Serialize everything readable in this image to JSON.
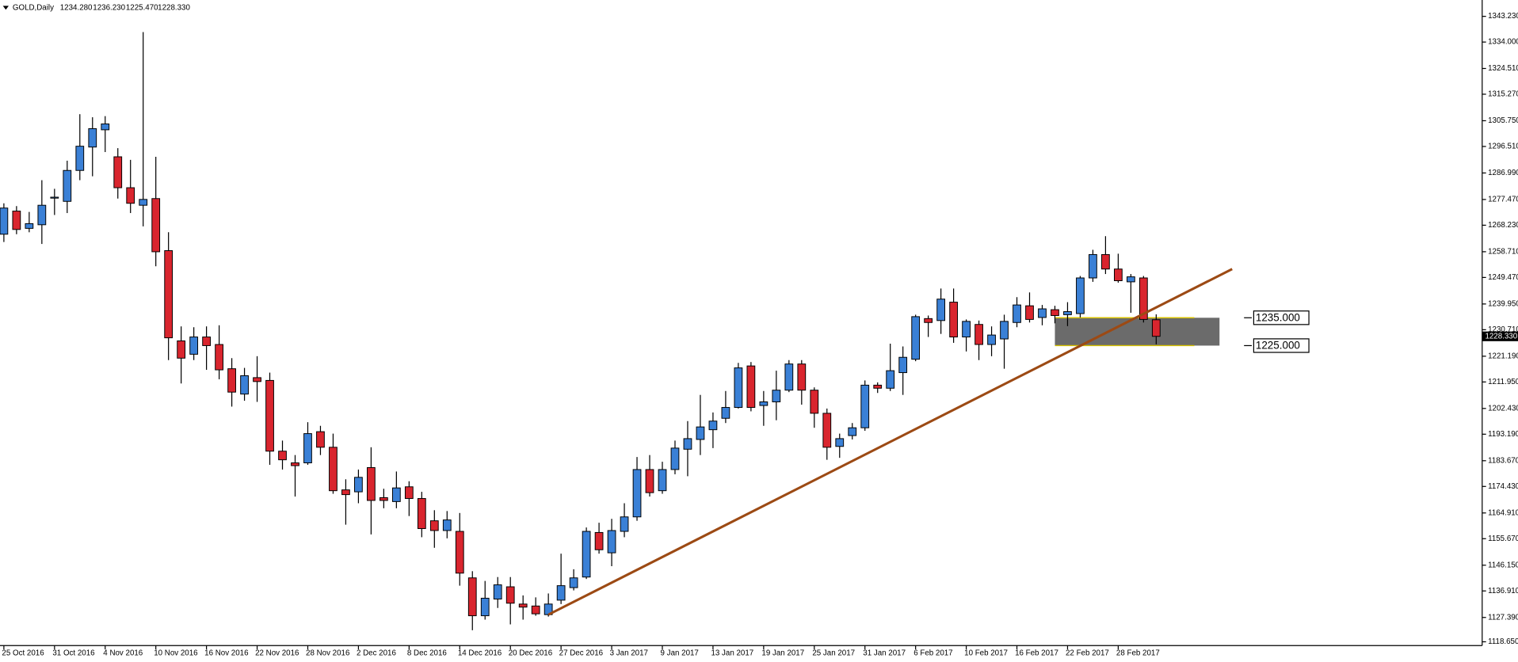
{
  "chart_data": {
    "type": "candlestick",
    "header": {
      "symbol": "GOLD,Daily",
      "ohlc": [
        "1234.280",
        "1236.230",
        "1225.470",
        "1228.330"
      ]
    },
    "categories": [
      "25 Oct 2016",
      null,
      null,
      null,
      "31 Oct 2016",
      null,
      null,
      null,
      "4 Nov 2016",
      null,
      null,
      null,
      "10 Nov 2016",
      null,
      null,
      null,
      "16 Nov 2016",
      null,
      null,
      null,
      "22 Nov 2016",
      null,
      null,
      null,
      "28 Nov 2016",
      null,
      null,
      null,
      "2 Dec 2016",
      null,
      null,
      null,
      "8 Dec 2016",
      null,
      null,
      null,
      "14 Dec 2016",
      null,
      null,
      null,
      "20 Dec 2016",
      null,
      null,
      null,
      "27 Dec 2016",
      null,
      null,
      null,
      "3 Jan 2017",
      null,
      null,
      null,
      "9 Jan 2017",
      null,
      null,
      null,
      "13 Jan 2017",
      null,
      null,
      null,
      "19 Jan 2017",
      null,
      null,
      null,
      "25 Jan 2017",
      null,
      null,
      null,
      "31 Jan 2017",
      null,
      null,
      null,
      "6 Feb 2017",
      null,
      null,
      null,
      "10 Feb 2017",
      null,
      null,
      null,
      "16 Feb 2017",
      null,
      null,
      null,
      "22 Feb 2017",
      null,
      null,
      null,
      "28 Feb 2017",
      null,
      null,
      null
    ],
    "open": [
      1265.0,
      1273.3,
      1267.1,
      1268.4,
      1278.2,
      1276.8,
      1287.9,
      1296.3,
      1302.5,
      1292.8,
      1281.7,
      1275.4,
      1277.8,
      1259.1,
      1226.7,
      1221.9,
      1228.1,
      1225.4,
      1216.7,
      1207.6,
      1213.5,
      1212.5,
      1187.1,
      1182.9,
      1182.9,
      1194.1,
      1188.5,
      1173.2,
      1172.5,
      1181.2,
      1170.4,
      1169.0,
      1174.3,
      1170.1,
      1162.1,
      1158.6,
      1158.3,
      1141.6,
      1128.0,
      1134.0,
      1138.4,
      1132.2,
      1131.5,
      1128.4,
      1133.6,
      1138.1,
      1141.9,
      1157.9,
      1150.6,
      1158.3,
      1163.5,
      1180.5,
      1172.9,
      1180.5,
      1187.8,
      1191.3,
      1194.8,
      1198.9,
      1202.8,
      1217.7,
      1203.5,
      1204.8,
      1209.0,
      1218.4,
      1209.0,
      1200.7,
      1188.8,
      1192.7,
      1195.5,
      1210.8,
      1209.7,
      1215.3,
      1220.1,
      1234.7,
      1234.0,
      1240.6,
      1228.1,
      1232.6,
      1225.4,
      1227.4,
      1233.3,
      1239.3,
      1235.1,
      1237.9,
      1236.1,
      1236.5,
      1249.3,
      1257.7,
      1252.5,
      1247.9,
      1249.3,
      1234.28
    ],
    "high": [
      1276.1,
      1275.1,
      1273.0,
      1284.4,
      1281.3,
      1291.4,
      1308.1,
      1307.0,
      1307.4,
      1295.9,
      1291.7,
      1337.6,
      1292.8,
      1265.7,
      1231.9,
      1231.6,
      1231.9,
      1232.3,
      1220.5,
      1217.0,
      1221.2,
      1215.3,
      1190.9,
      1185.7,
      1197.5,
      1196.2,
      1193.4,
      1177.0,
      1180.5,
      1188.5,
      1173.6,
      1179.8,
      1176.3,
      1172.5,
      1165.9,
      1165.6,
      1164.9,
      1144.0,
      1140.5,
      1141.9,
      1141.9,
      1135.3,
      1134.6,
      1136.0,
      1150.3,
      1144.7,
      1159.7,
      1161.4,
      1162.8,
      1168.4,
      1185.0,
      1185.7,
      1183.3,
      1190.9,
      1197.9,
      1207.3,
      1201.0,
      1208.7,
      1218.8,
      1219.1,
      1208.7,
      1216.0,
      1219.8,
      1219.8,
      1210.0,
      1202.4,
      1193.4,
      1197.2,
      1212.5,
      1211.8,
      1225.7,
      1224.7,
      1236.1,
      1235.8,
      1245.5,
      1245.5,
      1234.4,
      1234.0,
      1231.9,
      1236.1,
      1242.4,
      1244.1,
      1239.6,
      1239.3,
      1240.6,
      1250.0,
      1259.4,
      1264.3,
      1258.0,
      1250.7,
      1250.0,
      1236.23
    ],
    "low": [
      1262.2,
      1265.0,
      1265.7,
      1261.5,
      1271.9,
      1272.6,
      1284.4,
      1285.8,
      1294.5,
      1277.8,
      1272.6,
      1267.8,
      1253.5,
      1219.8,
      1211.4,
      1219.8,
      1216.3,
      1212.9,
      1203.1,
      1205.2,
      1204.8,
      1182.2,
      1180.5,
      1170.8,
      1182.2,
      1185.7,
      1171.8,
      1160.7,
      1168.4,
      1157.2,
      1166.6,
      1166.6,
      1163.8,
      1156.2,
      1152.4,
      1155.8,
      1138.8,
      1122.8,
      1126.6,
      1130.8,
      1124.9,
      1126.6,
      1128.0,
      1127.7,
      1132.2,
      1137.1,
      1141.2,
      1150.3,
      1145.8,
      1156.2,
      1162.1,
      1170.8,
      1171.8,
      1178.8,
      1178.1,
      1185.7,
      1188.2,
      1197.2,
      1202.4,
      1201.4,
      1196.2,
      1198.2,
      1208.3,
      1203.8,
      1195.5,
      1184.0,
      1184.7,
      1191.3,
      1194.4,
      1208.0,
      1208.7,
      1207.3,
      1219.4,
      1228.1,
      1229.2,
      1226.0,
      1222.9,
      1219.8,
      1221.2,
      1216.7,
      1231.6,
      1233.3,
      1232.3,
      1233.0,
      1232.0,
      1235.1,
      1247.9,
      1250.7,
      1247.6,
      1236.8,
      1233.3,
      1225.47
    ],
    "close": [
      1274.4,
      1266.7,
      1268.8,
      1275.4,
      1278.3,
      1287.9,
      1296.6,
      1302.9,
      1304.6,
      1281.7,
      1276.1,
      1277.5,
      1258.7,
      1227.8,
      1220.5,
      1228.1,
      1225.0,
      1216.3,
      1208.3,
      1214.2,
      1212.1,
      1187.1,
      1184.0,
      1181.9,
      1193.4,
      1188.5,
      1172.9,
      1171.5,
      1177.7,
      1169.4,
      1169.4,
      1173.9,
      1170.1,
      1159.3,
      1158.6,
      1162.4,
      1143.3,
      1128.0,
      1134.3,
      1139.1,
      1132.5,
      1131.1,
      1128.7,
      1132.2,
      1138.8,
      1141.6,
      1158.3,
      1151.7,
      1158.6,
      1163.5,
      1180.5,
      1172.2,
      1180.5,
      1188.2,
      1191.6,
      1195.8,
      1197.9,
      1202.8,
      1217.0,
      1202.8,
      1204.8,
      1209.0,
      1218.4,
      1209.0,
      1200.7,
      1188.5,
      1191.6,
      1195.5,
      1210.8,
      1209.7,
      1216.0,
      1220.8,
      1235.4,
      1233.3,
      1241.7,
      1228.1,
      1233.7,
      1225.4,
      1228.8,
      1233.7,
      1239.6,
      1234.4,
      1238.2,
      1235.8,
      1237.2,
      1249.3,
      1257.7,
      1252.5,
      1248.3,
      1249.7,
      1234.4,
      1228.33
    ],
    "up_color": "#3a80d6",
    "down_color": "#d9252e",
    "ylim": [
      1117.3,
      1349.1
    ],
    "yticks": [
      {
        "value": 1343.23,
        "label": "1343.230"
      },
      {
        "value": 1334,
        "label": "1334.000"
      },
      {
        "value": 1324.51,
        "label": "1324.510"
      },
      {
        "value": 1315.27,
        "label": "1315.270"
      },
      {
        "value": 1305.75,
        "label": "1305.750"
      },
      {
        "value": 1296.51,
        "label": "1296.510"
      },
      {
        "value": 1286.99,
        "label": "1286.990"
      },
      {
        "value": 1277.47,
        "label": "1277.470"
      },
      {
        "value": 1268.23,
        "label": "1268.230"
      },
      {
        "value": 1258.71,
        "label": "1258.710"
      },
      {
        "value": 1249.47,
        "label": "1249.470"
      },
      {
        "value": 1239.95,
        "label": "1239.950"
      },
      {
        "value": 1230.71,
        "label": "1230.710"
      },
      {
        "value": 1221.19,
        "label": "1221.190"
      },
      {
        "value": 1211.95,
        "label": "1211.950"
      },
      {
        "value": 1202.43,
        "label": "1202.430"
      },
      {
        "value": 1193.19,
        "label": "1193.190"
      },
      {
        "value": 1183.67,
        "label": "1183.670"
      },
      {
        "value": 1174.43,
        "label": "1174.430"
      },
      {
        "value": 1164.91,
        "label": "1164.910"
      },
      {
        "value": 1155.67,
        "label": "1155.670"
      },
      {
        "value": 1146.15,
        "label": "1146.150"
      },
      {
        "value": 1136.91,
        "label": "1136.910"
      },
      {
        "value": 1127.39,
        "label": "1127.390"
      },
      {
        "value": 1118.65,
        "label": "1118.650"
      }
    ],
    "current_price": {
      "value": 1228.33,
      "label": "1228.330"
    },
    "trendline": {
      "x": [
        43,
        97
      ],
      "y": [
        1128.4,
        1252.5
      ],
      "color": "#9c4a14"
    },
    "zone": {
      "x": [
        83,
        96
      ],
      "y": [
        1225,
        1235
      ],
      "color": "#6b6b6b",
      "line_color": "#d8c200"
    },
    "levels": [
      {
        "value": 1235,
        "label": "1235.000"
      },
      {
        "value": 1225,
        "label": "1225.000"
      }
    ]
  }
}
